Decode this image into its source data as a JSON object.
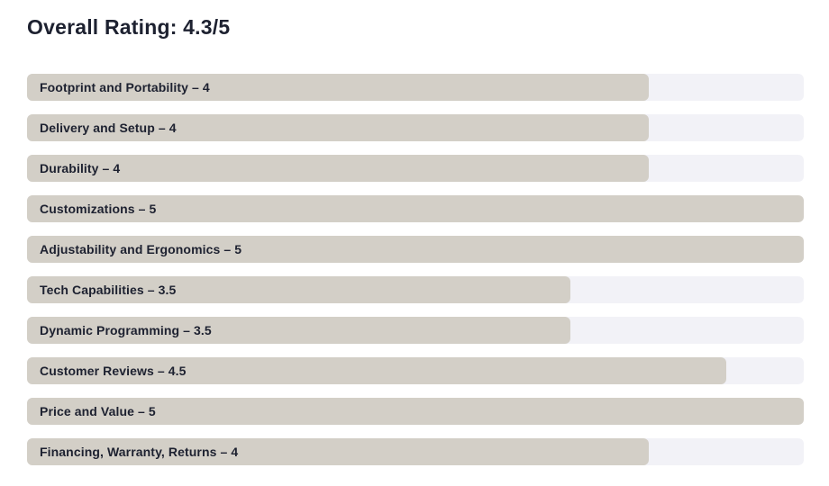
{
  "title": "Overall Rating: 4.3/5",
  "chart_data": {
    "type": "bar",
    "orientation": "horizontal",
    "title": "Overall Rating: 4.3/5",
    "categories": [
      "Footprint and Portability",
      "Delivery and Setup",
      "Durability",
      "Customizations",
      "Adjustability and Ergonomics",
      "Tech Capabilities",
      "Dynamic Programming",
      "Customer Reviews",
      "Price and Value",
      "Financing, Warranty, Returns"
    ],
    "values": [
      4,
      4,
      4,
      5,
      5,
      3.5,
      3.5,
      4.5,
      5,
      4
    ],
    "xlim": [
      0,
      5
    ],
    "label_separator": " – ",
    "grid": false,
    "legend": false
  },
  "colors": {
    "bar": "#d3cfc7",
    "track": "#f2f2f7",
    "text": "#1d2130",
    "background": "#ffffff"
  }
}
